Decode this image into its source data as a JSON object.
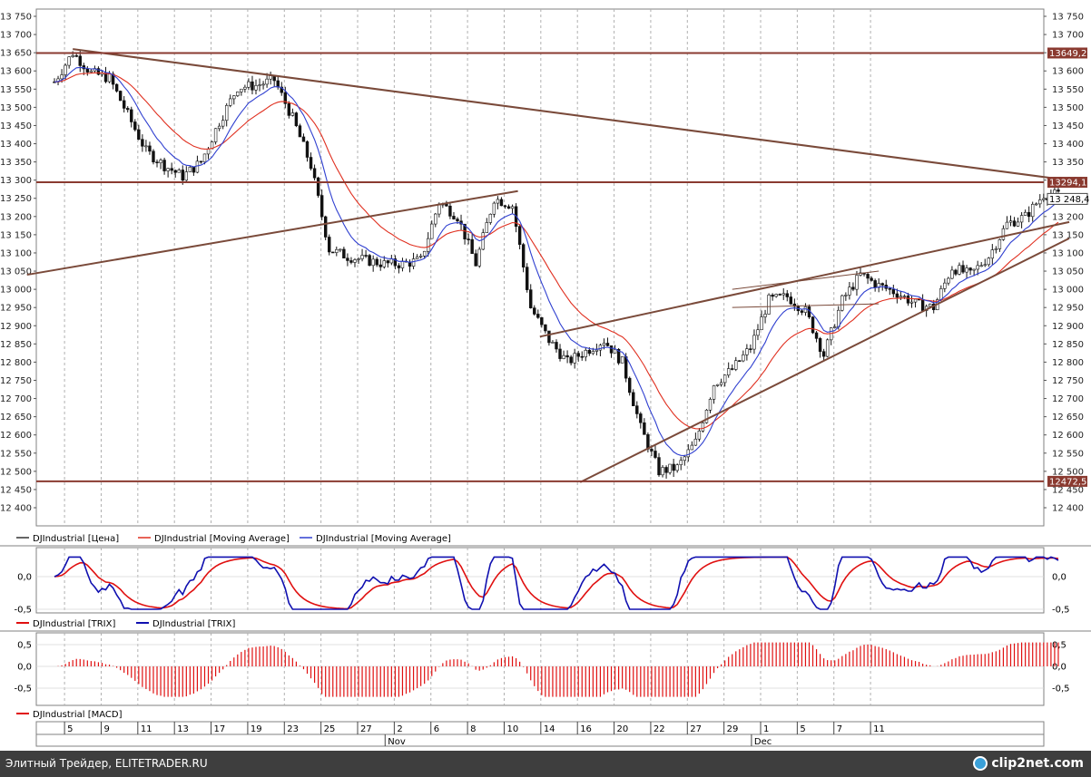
{
  "chart_data": [
    {
      "type": "candlestick",
      "panel": "price",
      "ylim": [
        12400,
        13750
      ],
      "y_ticks": [
        "12 400",
        "12 450",
        "12 500",
        "12 550",
        "12 600",
        "12 650",
        "12 700",
        "12 750",
        "12 800",
        "12 850",
        "12 900",
        "12 950",
        "13 000",
        "13 050",
        "13 100",
        "13 150",
        "13 200",
        "13 250",
        "13 300",
        "13 350",
        "13 400",
        "13 450",
        "13 500",
        "13 550",
        "13 600",
        "13 650",
        "13 700",
        "13 750"
      ],
      "y_tick_values": [
        12400,
        12450,
        12500,
        12550,
        12600,
        12650,
        12700,
        12750,
        12800,
        12850,
        12900,
        12950,
        13000,
        13050,
        13100,
        13150,
        13200,
        13250,
        13300,
        13350,
        13400,
        13450,
        13500,
        13550,
        13600,
        13650,
        13700,
        13750
      ],
      "grid": true,
      "grid_style": "dashed-vertical",
      "legend": [
        {
          "name": "DJIndustrial [Цена]",
          "color": "#333333"
        },
        {
          "name": "DJIndustrial [Moving Average]",
          "color": "#e03020"
        },
        {
          "name": "DJIndustrial [Moving Average]",
          "color": "#3040d0"
        }
      ],
      "price_labels": [
        {
          "text": "13649,2",
          "value": 13649.2
        },
        {
          "text": "13294,1",
          "value": 13294.1
        },
        {
          "text": "13 248,4",
          "value": 13248.4
        },
        {
          "text": "12472,5",
          "value": 12472.5
        }
      ],
      "anchor_points": [
        {
          "day": 0,
          "value": 13570
        },
        {
          "day": 1,
          "value": 13650
        },
        {
          "day": 2,
          "value": 13595
        },
        {
          "day": 3,
          "value": 13580
        },
        {
          "day": 4,
          "value": 13480
        },
        {
          "day": 5,
          "value": 13380
        },
        {
          "day": 6,
          "value": 13340
        },
        {
          "day": 7,
          "value": 13310
        },
        {
          "day": 8,
          "value": 13350
        },
        {
          "day": 9,
          "value": 13460
        },
        {
          "day": 10,
          "value": 13555
        },
        {
          "day": 11,
          "value": 13560
        },
        {
          "day": 12,
          "value": 13575
        },
        {
          "day": 13,
          "value": 13470
        },
        {
          "day": 14,
          "value": 13340
        },
        {
          "day": 15,
          "value": 13110
        },
        {
          "day": 16,
          "value": 13090
        },
        {
          "day": 17,
          "value": 13080
        },
        {
          "day": 18,
          "value": 13070
        },
        {
          "day": 19,
          "value": 13070
        },
        {
          "day": 20,
          "value": 13080
        },
        {
          "day": 21,
          "value": 13240
        },
        {
          "day": 22,
          "value": 13200
        },
        {
          "day": 23,
          "value": 13070
        },
        {
          "day": 24,
          "value": 13250
        },
        {
          "day": 25,
          "value": 13230
        },
        {
          "day": 26,
          "value": 12950
        },
        {
          "day": 27,
          "value": 12860
        },
        {
          "day": 28,
          "value": 12800
        },
        {
          "day": 29,
          "value": 12830
        },
        {
          "day": 30,
          "value": 12860
        },
        {
          "day": 31,
          "value": 12800
        },
        {
          "day": 32,
          "value": 12620
        },
        {
          "day": 33,
          "value": 12500
        },
        {
          "day": 34,
          "value": 12510
        },
        {
          "day": 35,
          "value": 12580
        },
        {
          "day": 36,
          "value": 12740
        },
        {
          "day": 37,
          "value": 12780
        },
        {
          "day": 38,
          "value": 12840
        },
        {
          "day": 39,
          "value": 12970
        },
        {
          "day": 40,
          "value": 12980
        },
        {
          "day": 41,
          "value": 12940
        },
        {
          "day": 42,
          "value": 12820
        },
        {
          "day": 43,
          "value": 12970
        },
        {
          "day": 44,
          "value": 13040
        },
        {
          "day": 45,
          "value": 13010
        },
        {
          "day": 46,
          "value": 12990
        },
        {
          "day": 47,
          "value": 12960
        },
        {
          "day": 48,
          "value": 12950
        },
        {
          "day": 49,
          "value": 13060
        },
        {
          "day": 50,
          "value": 13040
        },
        {
          "day": 51,
          "value": 13090
        },
        {
          "day": 52,
          "value": 13180
        },
        {
          "day": 53,
          "value": 13200
        },
        {
          "day": 54,
          "value": 13260
        }
      ],
      "x_day_labels": [
        {
          "text": "5",
          "day": 1
        },
        {
          "text": "9",
          "day": 3
        },
        {
          "text": "11",
          "day": 5
        },
        {
          "text": "13",
          "day": 7
        },
        {
          "text": "17",
          "day": 9
        },
        {
          "text": "19",
          "day": 11
        },
        {
          "text": "23",
          "day": 13
        },
        {
          "text": "25",
          "day": 15
        },
        {
          "text": "27",
          "day": 17
        },
        {
          "text": "2",
          "day": 19
        },
        {
          "text": "6",
          "day": 21
        },
        {
          "text": "8",
          "day": 23
        },
        {
          "text": "10",
          "day": 25
        },
        {
          "text": "14",
          "day": 27
        },
        {
          "text": "16",
          "day": 29
        },
        {
          "text": "20",
          "day": 31
        },
        {
          "text": "22",
          "day": 33
        },
        {
          "text": "27",
          "day": 35
        },
        {
          "text": "29",
          "day": 37
        },
        {
          "text": "1",
          "day": 39
        },
        {
          "text": "5",
          "day": 41
        },
        {
          "text": "7",
          "day": 43
        },
        {
          "text": "11",
          "day": 45
        }
      ],
      "x_month_labels": [
        {
          "text": "Nov",
          "day": 18.5
        },
        {
          "text": "Dec",
          "day": 38.5
        }
      ]
    },
    {
      "type": "line",
      "panel": "trix",
      "ylim": [
        -0.55,
        0.3
      ],
      "y_ticks": [
        "0,0",
        "-0,5"
      ],
      "y_tick_values": [
        0,
        -0.5
      ],
      "legend": [
        {
          "name": "DJIndustrial [TRIX]",
          "color": "#e01010"
        },
        {
          "name": "DJIndustrial [TRIX]",
          "color": "#1010b0"
        }
      ]
    },
    {
      "type": "bar",
      "panel": "macd",
      "ylim": [
        -0.75,
        0.6
      ],
      "y_ticks": [
        "0,5",
        "0,0",
        "-0,5"
      ],
      "y_tick_values": [
        0.5,
        0,
        -0.5
      ],
      "legend": [
        {
          "name": "DJIndustrial [MACD]",
          "color": "#e01010"
        }
      ]
    }
  ],
  "footer": {
    "text": "Элитный Трейдер, ELITETRADER.RU",
    "logo_text": "clip2net.com"
  }
}
